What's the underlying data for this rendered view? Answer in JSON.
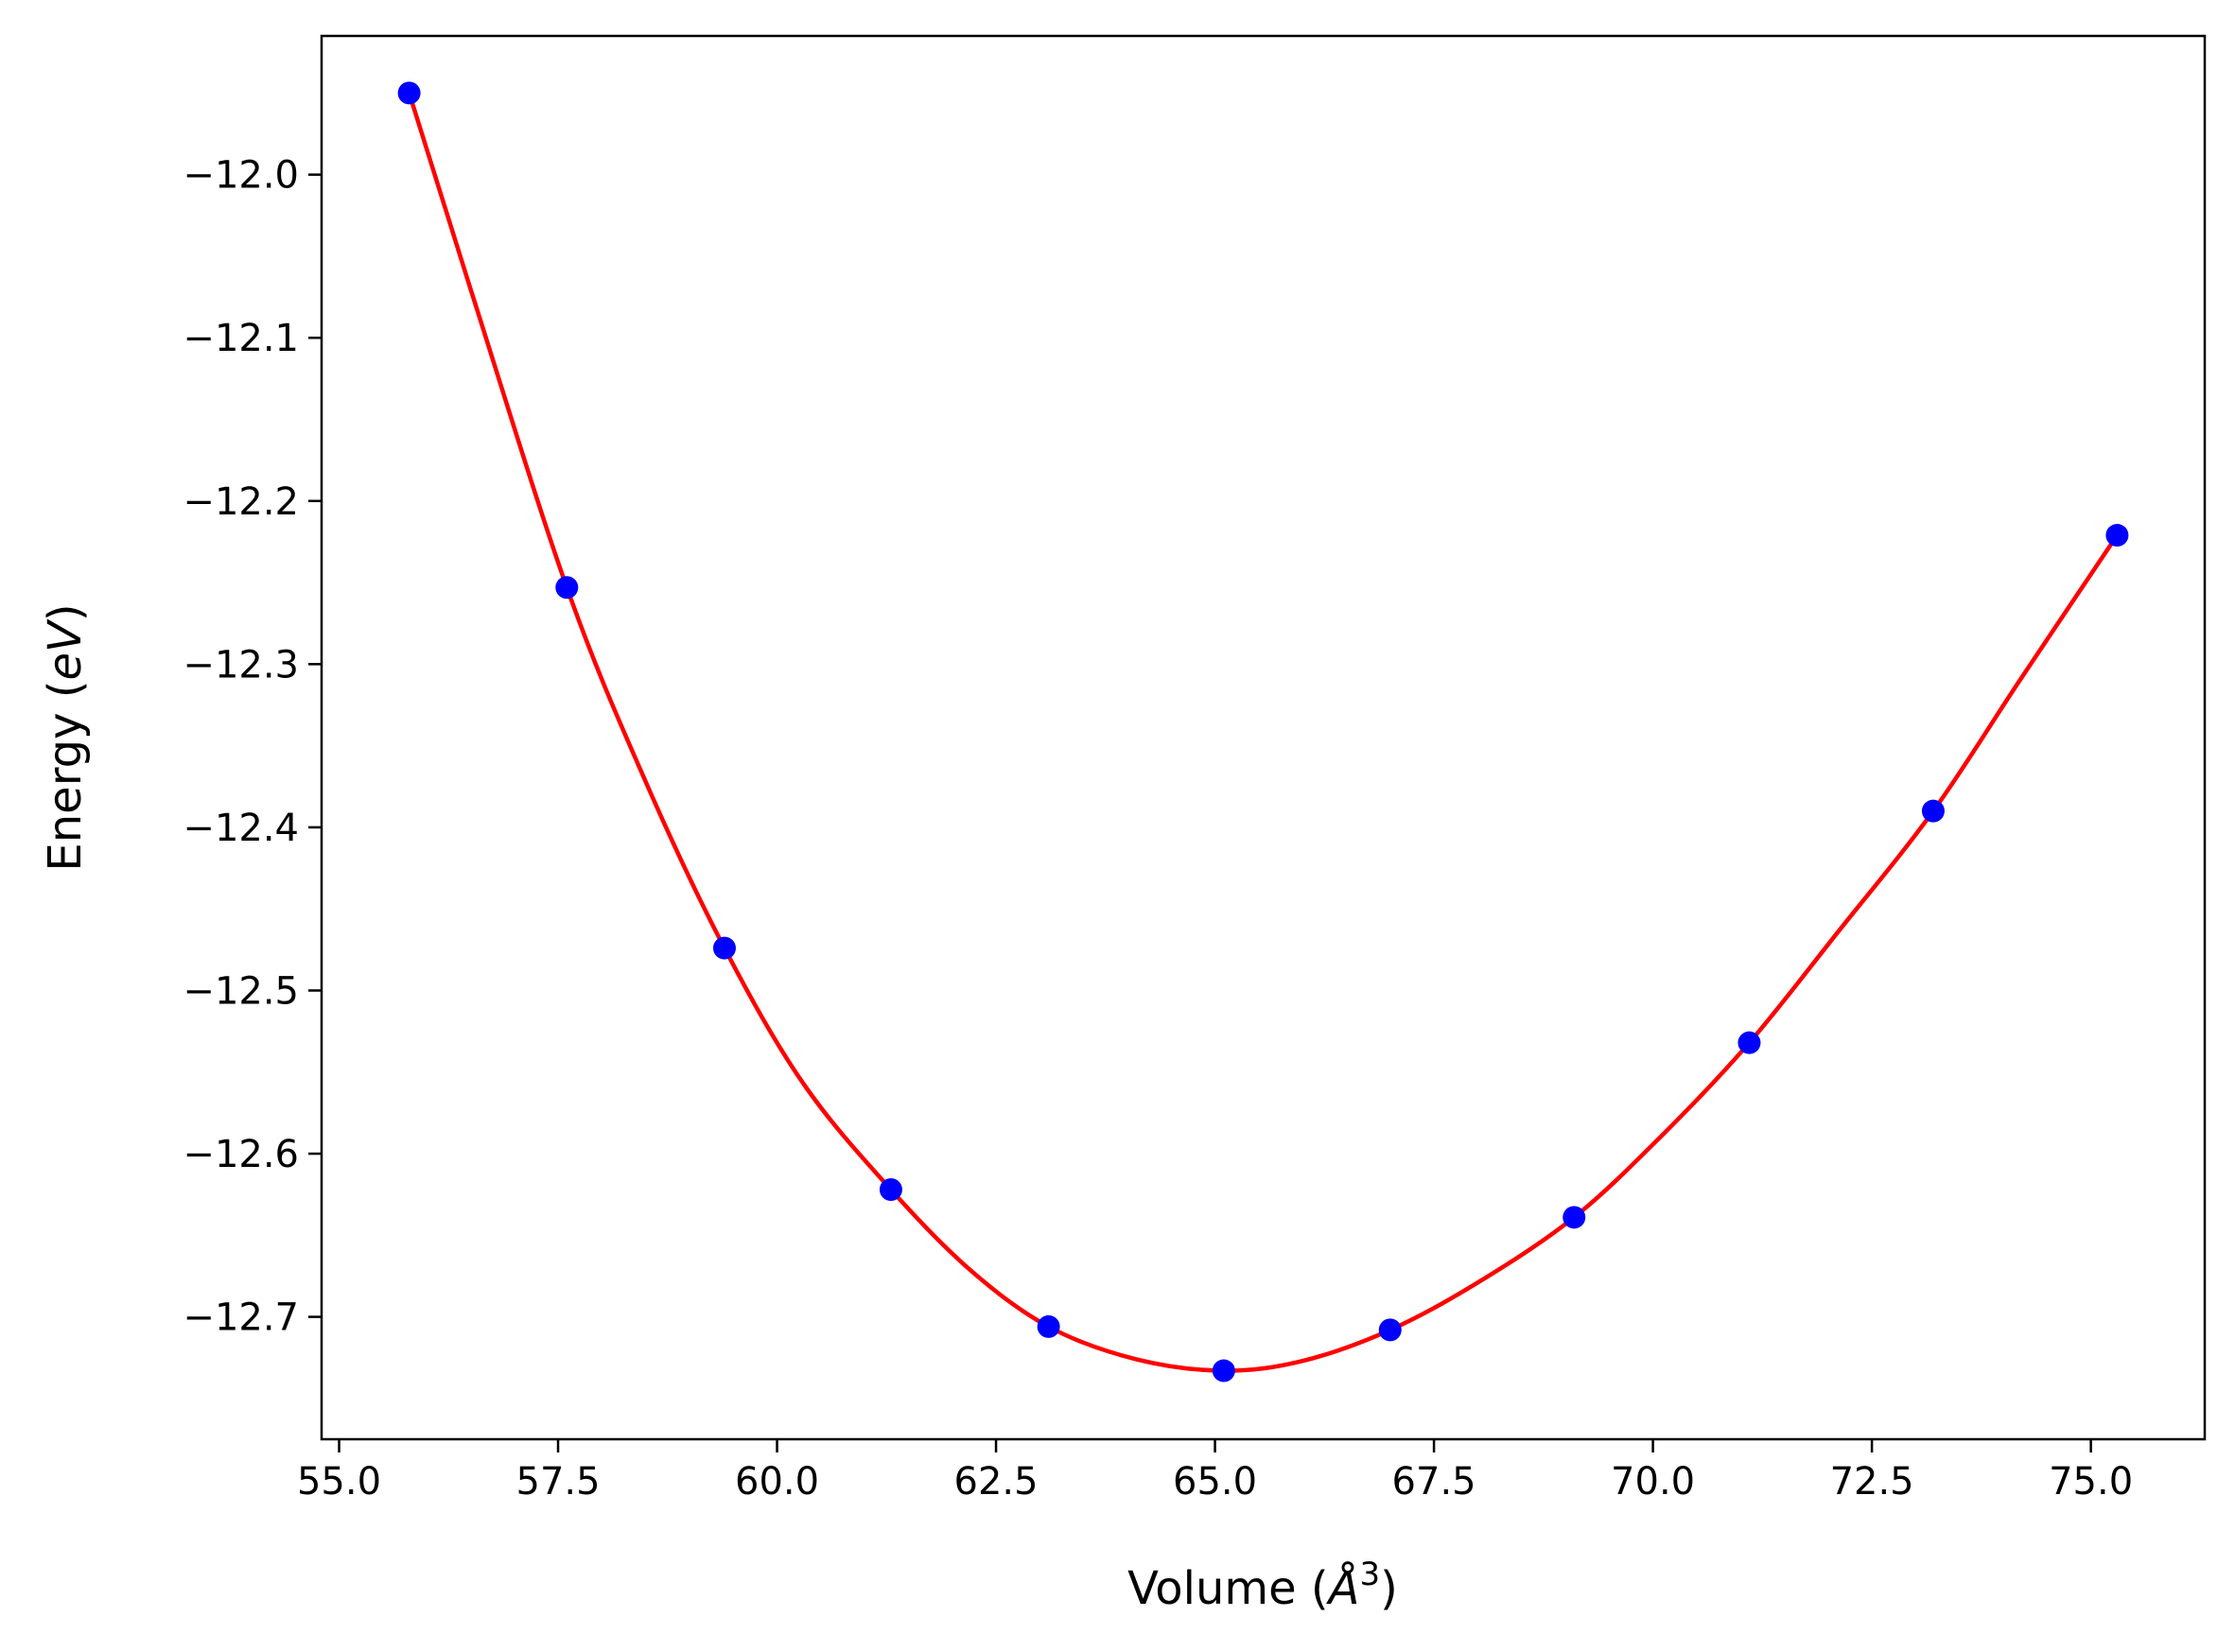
{
  "chart_data": {
    "type": "scatter",
    "title": "",
    "xlabel": "Volume (Å³)",
    "xlabel_parts": {
      "text": "Volume (",
      "symbol": "Å",
      "sup": "3",
      "close": ")"
    },
    "ylabel": "Energy (eV)",
    "ylabel_parts": {
      "text": "Energy (",
      "italic": "eV",
      "close": ")"
    },
    "xlim": [
      54.8,
      76.3
    ],
    "ylim": [
      -12.775,
      -11.915
    ],
    "x_ticks": [
      55.0,
      57.5,
      60.0,
      62.5,
      65.0,
      67.5,
      70.0,
      72.5,
      75.0
    ],
    "x_tick_labels": [
      "55.0",
      "57.5",
      "60.0",
      "62.5",
      "65.0",
      "67.5",
      "70.0",
      "72.5",
      "75.0"
    ],
    "y_ticks": [
      -12.0,
      -12.1,
      -12.2,
      -12.3,
      -12.4,
      -12.5,
      -12.6,
      -12.7
    ],
    "y_tick_labels": [
      "−12.0",
      "−12.1",
      "−12.2",
      "−12.3",
      "−12.4",
      "−12.5",
      "−12.6",
      "−12.7"
    ],
    "grid": false,
    "series": [
      {
        "kind": "points",
        "color": "#0000ff",
        "x": [
          55.8,
          57.6,
          59.4,
          61.3,
          63.1,
          65.1,
          67.0,
          69.1,
          71.1,
          73.2,
          75.3
        ],
        "y": [
          -11.95,
          -12.253,
          -12.474,
          -12.622,
          -12.706,
          -12.733,
          -12.708,
          -12.639,
          -12.532,
          -12.39,
          -12.221
        ]
      },
      {
        "kind": "fit-curve",
        "color": "#ff0000",
        "x": [
          55.8,
          56.5,
          57.6,
          58.5,
          59.4,
          60.3,
          61.3,
          62.2,
          63.1,
          64.1,
          65.1,
          66.0,
          67.0,
          68.0,
          69.1,
          70.1,
          71.1,
          72.1,
          73.2,
          74.2,
          75.3
        ],
        "y": [
          -11.95,
          -12.07,
          -12.253,
          -12.372,
          -12.474,
          -12.557,
          -12.622,
          -12.671,
          -12.706,
          -12.726,
          -12.733,
          -12.727,
          -12.708,
          -12.679,
          -12.639,
          -12.589,
          -12.532,
          -12.465,
          -12.39,
          -12.309,
          -12.221
        ]
      }
    ]
  }
}
